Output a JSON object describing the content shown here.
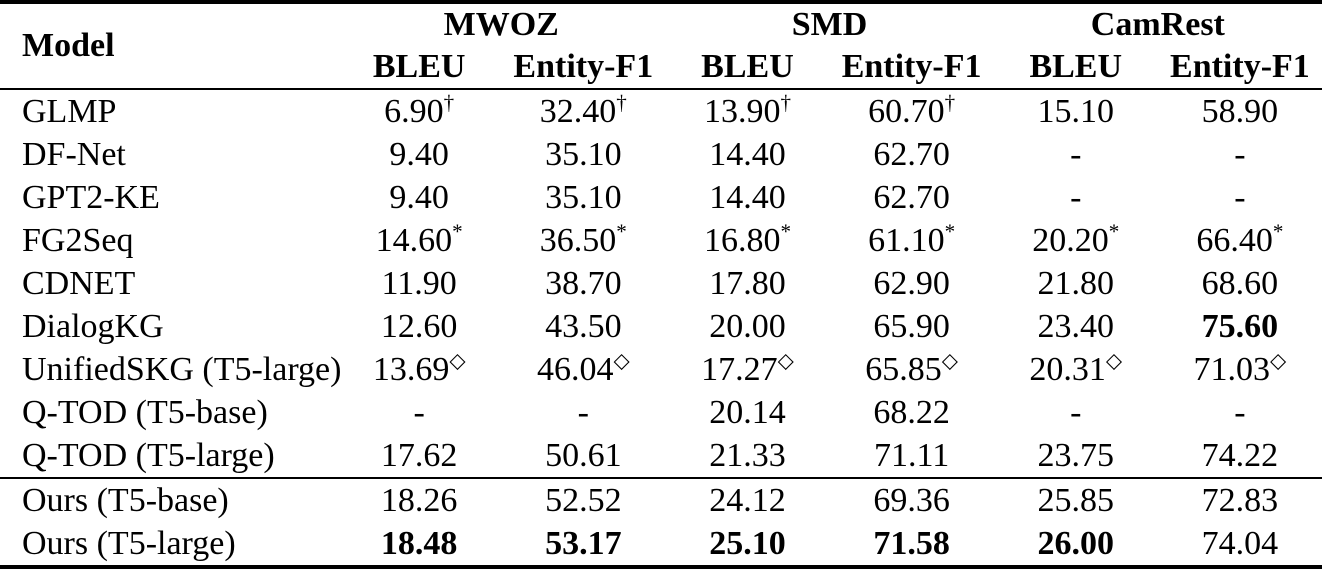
{
  "page": {
    "background_color": "#ffffff",
    "text_color": "#000000"
  },
  "table": {
    "model_header": "Model",
    "groups": [
      {
        "label": "MWOZ"
      },
      {
        "label": "SMD"
      },
      {
        "label": "CamRest"
      }
    ],
    "sub_headers": [
      "BLEU",
      "Entity-F1",
      "BLEU",
      "Entity-F1",
      "BLEU",
      "Entity-F1"
    ],
    "marker_symbols": {
      "dagger": "†",
      "asterisk": "*",
      "diamond": "◇"
    },
    "rows": [
      {
        "model": "GLMP",
        "rule_above": false,
        "cells": [
          {
            "text": "6.90",
            "sup": "†",
            "bold": false
          },
          {
            "text": "32.40",
            "sup": "†",
            "bold": false
          },
          {
            "text": "13.90",
            "sup": "†",
            "bold": false
          },
          {
            "text": "60.70",
            "sup": "†",
            "bold": false
          },
          {
            "text": "15.10",
            "sup": "",
            "bold": false
          },
          {
            "text": "58.90",
            "sup": "",
            "bold": false
          }
        ]
      },
      {
        "model": "DF-Net",
        "rule_above": false,
        "cells": [
          {
            "text": "9.40",
            "sup": "",
            "bold": false
          },
          {
            "text": "35.10",
            "sup": "",
            "bold": false
          },
          {
            "text": "14.40",
            "sup": "",
            "bold": false
          },
          {
            "text": "62.70",
            "sup": "",
            "bold": false
          },
          {
            "text": "-",
            "sup": "",
            "bold": false
          },
          {
            "text": "-",
            "sup": "",
            "bold": false
          }
        ]
      },
      {
        "model": "GPT2-KE",
        "rule_above": false,
        "cells": [
          {
            "text": "9.40",
            "sup": "",
            "bold": false
          },
          {
            "text": "35.10",
            "sup": "",
            "bold": false
          },
          {
            "text": "14.40",
            "sup": "",
            "bold": false
          },
          {
            "text": "62.70",
            "sup": "",
            "bold": false
          },
          {
            "text": "-",
            "sup": "",
            "bold": false
          },
          {
            "text": "-",
            "sup": "",
            "bold": false
          }
        ]
      },
      {
        "model": "FG2Seq",
        "rule_above": false,
        "cells": [
          {
            "text": "14.60",
            "sup": "*",
            "bold": false
          },
          {
            "text": "36.50",
            "sup": "*",
            "bold": false
          },
          {
            "text": "16.80",
            "sup": "*",
            "bold": false
          },
          {
            "text": "61.10",
            "sup": "*",
            "bold": false
          },
          {
            "text": "20.20",
            "sup": "*",
            "bold": false
          },
          {
            "text": "66.40",
            "sup": "*",
            "bold": false
          }
        ]
      },
      {
        "model": "CDNET",
        "rule_above": false,
        "cells": [
          {
            "text": "11.90",
            "sup": "",
            "bold": false
          },
          {
            "text": "38.70",
            "sup": "",
            "bold": false
          },
          {
            "text": "17.80",
            "sup": "",
            "bold": false
          },
          {
            "text": "62.90",
            "sup": "",
            "bold": false
          },
          {
            "text": "21.80",
            "sup": "",
            "bold": false
          },
          {
            "text": "68.60",
            "sup": "",
            "bold": false
          }
        ]
      },
      {
        "model": "DialogKG",
        "rule_above": false,
        "cells": [
          {
            "text": "12.60",
            "sup": "",
            "bold": false
          },
          {
            "text": "43.50",
            "sup": "",
            "bold": false
          },
          {
            "text": "20.00",
            "sup": "",
            "bold": false
          },
          {
            "text": "65.90",
            "sup": "",
            "bold": false
          },
          {
            "text": "23.40",
            "sup": "",
            "bold": false
          },
          {
            "text": "75.60",
            "sup": "",
            "bold": true
          }
        ]
      },
      {
        "model": "UnifiedSKG (T5-large)",
        "rule_above": false,
        "cells": [
          {
            "text": "13.69",
            "sup": "◇",
            "bold": false
          },
          {
            "text": "46.04",
            "sup": "◇",
            "bold": false
          },
          {
            "text": "17.27",
            "sup": "◇",
            "bold": false
          },
          {
            "text": "65.85",
            "sup": "◇",
            "bold": false
          },
          {
            "text": "20.31",
            "sup": "◇",
            "bold": false
          },
          {
            "text": "71.03",
            "sup": "◇",
            "bold": false
          }
        ]
      },
      {
        "model": "Q-TOD (T5-base)",
        "rule_above": false,
        "cells": [
          {
            "text": "-",
            "sup": "",
            "bold": false
          },
          {
            "text": "-",
            "sup": "",
            "bold": false
          },
          {
            "text": "20.14",
            "sup": "",
            "bold": false
          },
          {
            "text": "68.22",
            "sup": "",
            "bold": false
          },
          {
            "text": "-",
            "sup": "",
            "bold": false
          },
          {
            "text": "-",
            "sup": "",
            "bold": false
          }
        ]
      },
      {
        "model": "Q-TOD (T5-large)",
        "rule_above": false,
        "cells": [
          {
            "text": "17.62",
            "sup": "",
            "bold": false
          },
          {
            "text": "50.61",
            "sup": "",
            "bold": false
          },
          {
            "text": "21.33",
            "sup": "",
            "bold": false
          },
          {
            "text": "71.11",
            "sup": "",
            "bold": false
          },
          {
            "text": "23.75",
            "sup": "",
            "bold": false
          },
          {
            "text": "74.22",
            "sup": "",
            "bold": false
          }
        ]
      },
      {
        "model": "Ours (T5-base)",
        "rule_above": true,
        "cells": [
          {
            "text": "18.26",
            "sup": "",
            "bold": false
          },
          {
            "text": "52.52",
            "sup": "",
            "bold": false
          },
          {
            "text": "24.12",
            "sup": "",
            "bold": false
          },
          {
            "text": "69.36",
            "sup": "",
            "bold": false
          },
          {
            "text": "25.85",
            "sup": "",
            "bold": false
          },
          {
            "text": "72.83",
            "sup": "",
            "bold": false
          }
        ]
      },
      {
        "model": "Ours (T5-large)",
        "rule_above": false,
        "cells": [
          {
            "text": "18.48",
            "sup": "",
            "bold": true
          },
          {
            "text": "53.17",
            "sup": "",
            "bold": true
          },
          {
            "text": "25.10",
            "sup": "",
            "bold": true
          },
          {
            "text": "71.58",
            "sup": "",
            "bold": true
          },
          {
            "text": "26.00",
            "sup": "",
            "bold": true
          },
          {
            "text": "74.04",
            "sup": "",
            "bold": false
          }
        ]
      }
    ]
  }
}
